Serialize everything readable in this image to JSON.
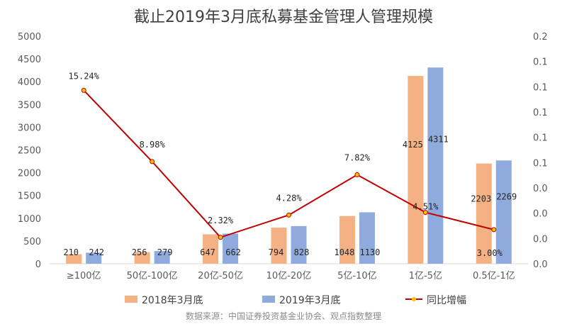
{
  "chart_data": {
    "type": "bar",
    "title": "截止2019年3月底私募基金管理人管理规模",
    "categories": [
      "≥100亿",
      "50亿-100亿",
      "20亿-50亿",
      "10亿-20亿",
      "5亿-10亿",
      "1亿-5亿",
      "0.5亿-1亿"
    ],
    "series": [
      {
        "name": "2018年3月底",
        "type": "bar",
        "axis": "left",
        "color": "#F4B183",
        "values": [
          210,
          256,
          647,
          794,
          1048,
          4125,
          2203
        ],
        "labels": [
          "210",
          "256",
          "647",
          "794",
          "1048",
          "4125",
          "2203"
        ]
      },
      {
        "name": "2019年3月底",
        "type": "bar",
        "axis": "left",
        "color": "#8FAADC",
        "values": [
          242,
          279,
          662,
          828,
          1130,
          4311,
          2269
        ],
        "labels": [
          "242",
          "279",
          "662",
          "828",
          "1130",
          "4311",
          "2269"
        ]
      },
      {
        "name": "同比增幅",
        "type": "line",
        "axis": "right",
        "color": "#C00000",
        "marker_color": "#FFC000",
        "values": [
          0.1524,
          0.0898,
          0.0232,
          0.0428,
          0.0782,
          0.0451,
          0.03
        ],
        "labels": [
          "15.24%",
          "8.98%",
          "2.32%",
          "4.28%",
          "7.82%",
          "4.51%",
          "3.00%"
        ]
      }
    ],
    "y_left": {
      "ylim": [
        0,
        5000
      ],
      "ticks": [
        "0",
        "500",
        "1000",
        "1500",
        "2000",
        "2500",
        "3000",
        "3500",
        "4000",
        "4500",
        "5000"
      ]
    },
    "y_right": {
      "ylim": [
        0,
        0.2
      ],
      "ticks": [
        "0.0",
        "0.0",
        "0.0",
        "0.0",
        "0.1",
        "0.1",
        "0.1",
        "0.1",
        "0.1",
        "0.2"
      ]
    },
    "grid": false,
    "legend_position": "bottom",
    "source_note": "数据来源：中国证券投资基金业协会、观点指数整理"
  }
}
